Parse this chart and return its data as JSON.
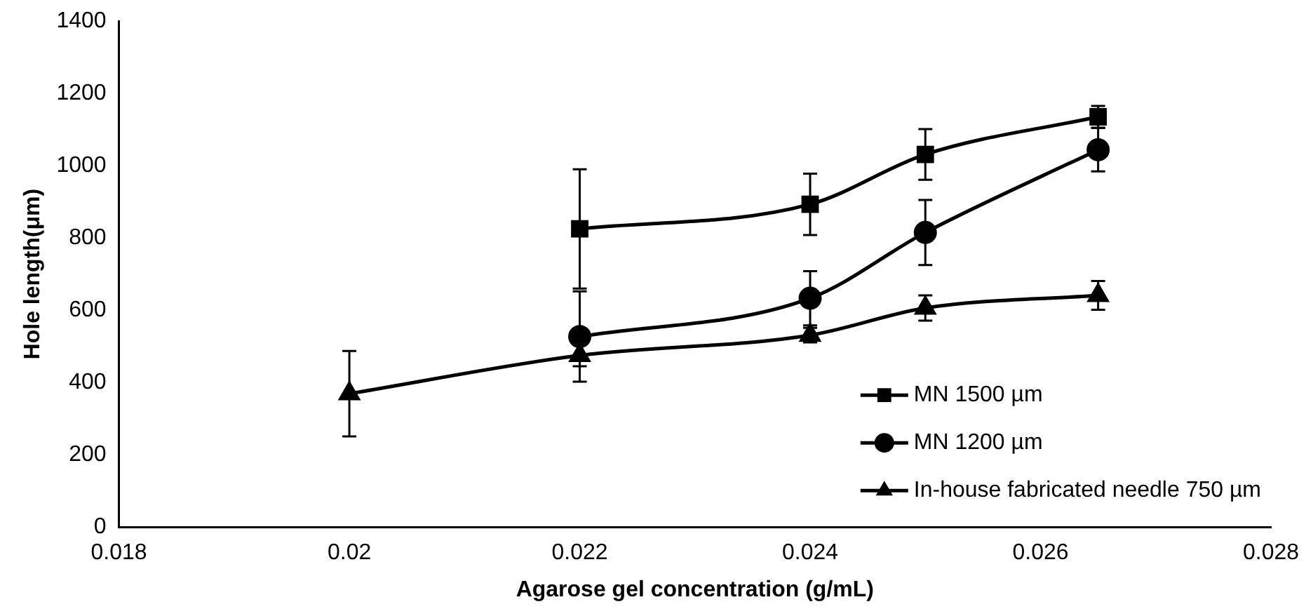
{
  "chart_data": {
    "type": "line",
    "xlabel": "Agarose gel concentration (g/mL)",
    "ylabel": "Hole length(μm)",
    "xlim": [
      0.018,
      0.028
    ],
    "xticks": [
      0.018,
      0.02,
      0.022,
      0.024,
      0.026,
      0.028
    ],
    "ylim": [
      0,
      1400
    ],
    "yticks": [
      0,
      200,
      400,
      600,
      800,
      1000,
      1200,
      1400
    ],
    "grid": false,
    "legend": "bottom right",
    "line_style": "solid",
    "series": [
      {
        "name": "MN 1500 µm",
        "color": "#000000",
        "marker": "square",
        "x": [
          0.022,
          0.024,
          0.025,
          0.0265
        ],
        "values": [
          825,
          893,
          1031,
          1135
        ],
        "errors": [
          165,
          85,
          70,
          30
        ]
      },
      {
        "name": "MN 1200 µm",
        "color": "#000000",
        "marker": "circle",
        "x": [
          0.022,
          0.024,
          0.025,
          0.0265
        ],
        "values": [
          527,
          633,
          815,
          1044
        ],
        "errors": [
          125,
          75,
          90,
          60
        ]
      },
      {
        "name": "In-house fabricated needle 750 µm",
        "color": "#000000",
        "marker": "triangle",
        "x": [
          0.02,
          0.022,
          0.024,
          0.025,
          0.0265
        ],
        "values": [
          369,
          475,
          531,
          606,
          641
        ],
        "errors": [
          118,
          30,
          20,
          35,
          40
        ]
      }
    ]
  }
}
